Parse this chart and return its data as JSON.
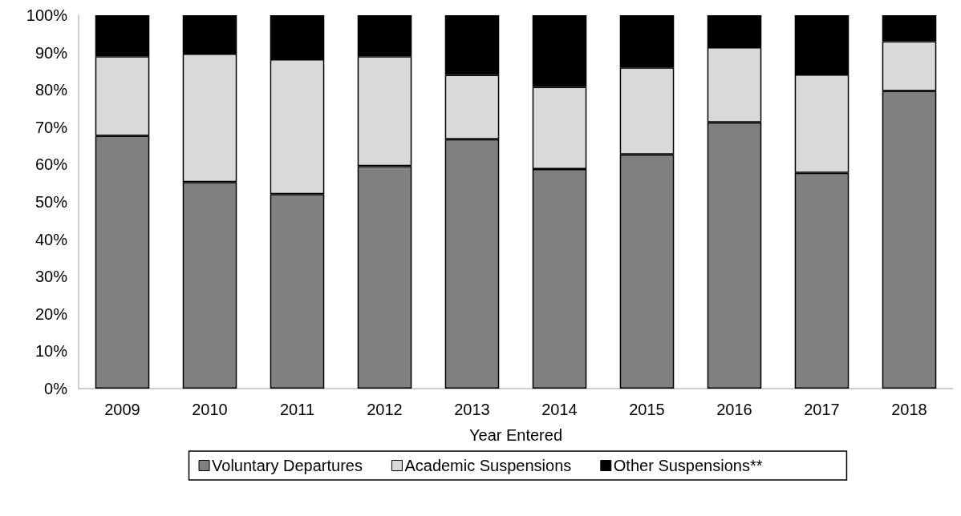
{
  "chart_data": {
    "type": "bar",
    "stacked": true,
    "xlabel": "Year Entered",
    "categories": [
      "2009",
      "2010",
      "2011",
      "2012",
      "2013",
      "2014",
      "2015",
      "2016",
      "2017",
      "2018"
    ],
    "series": [
      {
        "name": "Voluntary Departures",
        "color": "#808080",
        "values": [
          67.7,
          55.3,
          52.1,
          59.6,
          66.8,
          58.8,
          62.7,
          71.3,
          57.8,
          79.7
        ]
      },
      {
        "name": "Academic Suspensions",
        "color": "#d9d9d9",
        "values": [
          21.3,
          34.4,
          36.1,
          29.4,
          17.2,
          22.0,
          23.3,
          20.1,
          26.3,
          13.3
        ]
      },
      {
        "name": "Other Suspensions**",
        "color": "#000000",
        "values": [
          11.0,
          10.3,
          11.8,
          11.0,
          16.0,
          19.2,
          14.0,
          8.6,
          15.9,
          7.0
        ]
      }
    ],
    "ylim": [
      0,
      100
    ],
    "yticks": [
      {
        "value": 0,
        "label": "0%"
      },
      {
        "value": 10,
        "label": "10%"
      },
      {
        "value": 20,
        "label": "20%"
      },
      {
        "value": 30,
        "label": "30%"
      },
      {
        "value": 40,
        "label": "40%"
      },
      {
        "value": 50,
        "label": "50%"
      },
      {
        "value": 60,
        "label": "60%"
      },
      {
        "value": 70,
        "label": "70%"
      },
      {
        "value": 80,
        "label": "80%"
      },
      {
        "value": 90,
        "label": "90%"
      },
      {
        "value": 100,
        "label": "100%"
      }
    ],
    "grid": false,
    "legend": "bottom"
  }
}
